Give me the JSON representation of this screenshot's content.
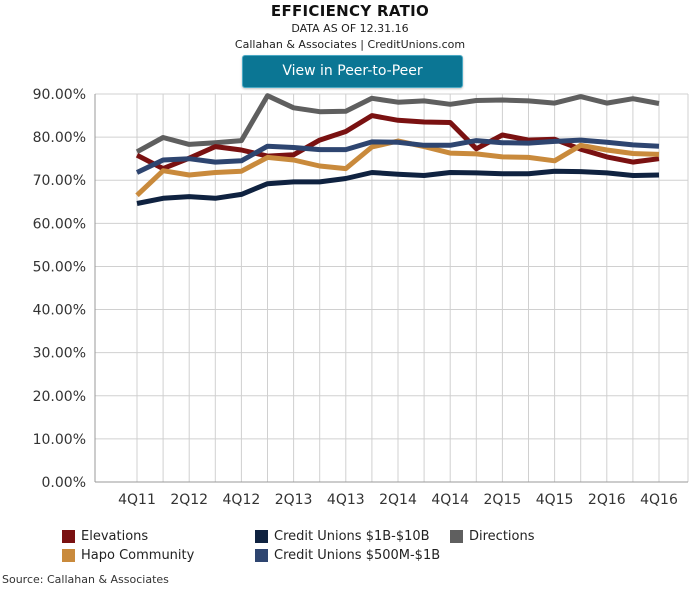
{
  "header": {
    "title": "EFFICIENCY RATIO",
    "as_of": "DATA AS OF 12.31.16",
    "credit": "Callahan & Associates | CreditUnions.com",
    "button_label": "View in Peer-to-Peer"
  },
  "source": "Source: Callahan & Associates",
  "colors": {
    "button": "#0b7694",
    "grid": "#d0d0d0"
  },
  "chart_data": {
    "type": "line",
    "title": "EFFICIENCY RATIO",
    "xlabel": "",
    "ylabel": "",
    "ylim": [
      0,
      90
    ],
    "y_ticks": [
      "0.00%",
      "10.00%",
      "20.00%",
      "30.00%",
      "40.00%",
      "50.00%",
      "60.00%",
      "70.00%",
      "80.00%",
      "90.00%"
    ],
    "x": [
      "4Q11",
      "1Q12",
      "2Q12",
      "3Q12",
      "4Q12",
      "1Q13",
      "2Q13",
      "3Q13",
      "4Q13",
      "1Q14",
      "2Q14",
      "3Q14",
      "4Q14",
      "1Q15",
      "2Q15",
      "3Q15",
      "4Q15",
      "1Q16",
      "2Q16",
      "3Q16",
      "4Q16"
    ],
    "x_tick_labels": [
      "4Q11",
      "2Q12",
      "4Q12",
      "2Q13",
      "4Q13",
      "2Q14",
      "4Q14",
      "2Q15",
      "4Q15",
      "2Q16",
      "4Q16"
    ],
    "grid": true,
    "legend_position": "bottom",
    "series": [
      {
        "name": "Elevations",
        "color": "#7a1111",
        "values": [
          75.8,
          72.7,
          75.1,
          77.8,
          77.0,
          75.6,
          75.9,
          79.3,
          81.3,
          85.0,
          83.9,
          83.5,
          83.4,
          77.3,
          80.5,
          79.3,
          79.5,
          77.2,
          75.4,
          74.2,
          75.0
        ]
      },
      {
        "name": "Credit Unions $1B-$10B",
        "color": "#0f2240",
        "values": [
          64.6,
          65.8,
          66.2,
          65.8,
          66.7,
          69.2,
          69.6,
          69.6,
          70.4,
          71.8,
          71.4,
          71.1,
          71.8,
          71.7,
          71.5,
          71.5,
          72.1,
          72.0,
          71.7,
          71.1,
          71.2
        ]
      },
      {
        "name": "Directions",
        "color": "#5f5f5f",
        "values": [
          76.6,
          79.9,
          78.3,
          78.7,
          79.2,
          89.6,
          86.8,
          85.9,
          86.0,
          89.0,
          88.1,
          88.4,
          87.6,
          88.5,
          88.6,
          88.4,
          87.9,
          89.4,
          87.9,
          88.9,
          87.8
        ]
      },
      {
        "name": "Hapo Community",
        "color": "#c98a3c",
        "values": [
          66.5,
          72.2,
          71.2,
          71.8,
          72.1,
          75.3,
          74.7,
          73.3,
          72.7,
          77.7,
          79.1,
          77.8,
          76.3,
          76.1,
          75.4,
          75.3,
          74.5,
          78.1,
          77.0,
          76.2,
          76.0
        ]
      },
      {
        "name": "Credit Unions $500M-$1B",
        "color": "#2e4570",
        "values": [
          71.8,
          74.7,
          75.0,
          74.2,
          74.5,
          77.9,
          77.6,
          77.1,
          77.1,
          78.9,
          78.8,
          78.1,
          78.1,
          79.2,
          78.7,
          78.6,
          79.0,
          79.3,
          78.8,
          78.2,
          77.9
        ]
      }
    ]
  },
  "legend": [
    {
      "label": "Elevations",
      "color": "#7a1111"
    },
    {
      "label": "Credit Unions $1B-$10B",
      "color": "#0f2240"
    },
    {
      "label": "Directions",
      "color": "#5f5f5f"
    },
    {
      "label": "Hapo Community",
      "color": "#c98a3c"
    },
    {
      "label": "Credit Unions $500M-$1B",
      "color": "#2e4570"
    }
  ]
}
